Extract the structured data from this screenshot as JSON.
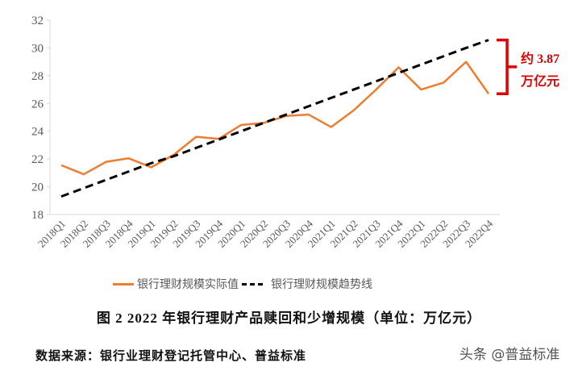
{
  "chart_data": {
    "type": "line",
    "categories": [
      "2018Q1",
      "2018Q2",
      "2018Q3",
      "2018Q4",
      "2019Q1",
      "2019Q2",
      "2019Q3",
      "2019Q4",
      "2020Q1",
      "2020Q2",
      "2020Q3",
      "2020Q4",
      "2021Q1",
      "2021Q2",
      "2021Q3",
      "2021Q4",
      "2022Q1",
      "2022Q2",
      "2022Q3",
      "2022Q4"
    ],
    "series": [
      {
        "name": "银行理财规模实际值",
        "color": "#ED7D31",
        "style": "solid",
        "values": [
          21.55,
          20.9,
          21.8,
          22.05,
          21.4,
          22.3,
          23.6,
          23.45,
          24.45,
          24.6,
          25.1,
          25.2,
          24.3,
          25.5,
          27.0,
          28.6,
          27.0,
          27.5,
          29.0,
          26.7
        ]
      },
      {
        "name": "银行理财规模趋势线",
        "color": "#000000",
        "style": "dashed",
        "values": [
          19.3,
          19.9,
          20.5,
          21.1,
          21.7,
          22.2,
          22.8,
          23.4,
          24.0,
          24.6,
          25.2,
          25.8,
          26.4,
          27.0,
          27.6,
          28.2,
          28.8,
          29.4,
          30.0,
          30.57
        ]
      }
    ],
    "ylim": [
      18,
      32
    ],
    "yticks": [
      18,
      20,
      22,
      24,
      26,
      28,
      30,
      32
    ],
    "grid": false,
    "legend": "bottom",
    "annotation": {
      "line1": "约 3.87",
      "line2": "万亿元",
      "color": "#E00000"
    },
    "title": "图 2   2022 年银行理财产品赎回和少增规模（单位：万亿元）"
  },
  "source": "数据来源：银行业理财登记托管中心、普益标准",
  "watermark": "头条 @普益标准"
}
